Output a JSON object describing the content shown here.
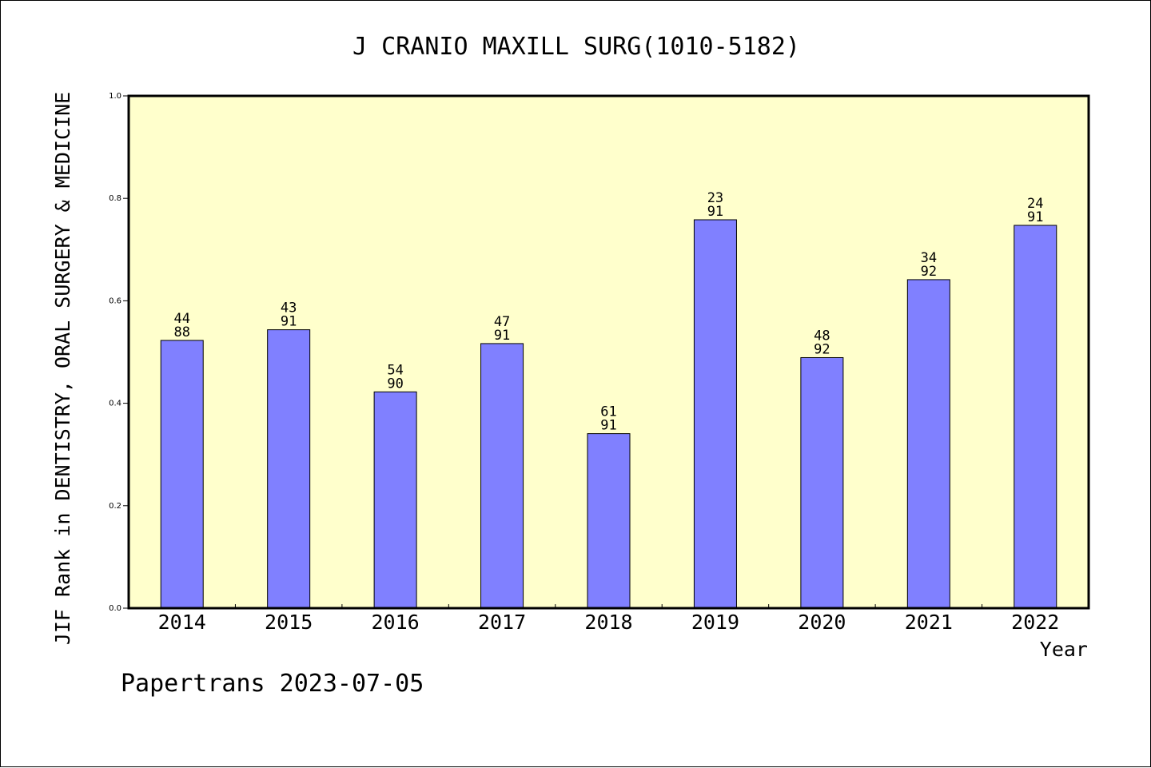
{
  "chart_data": {
    "type": "bar",
    "title": "J CRANIO MAXILL SURG(1010-5182)",
    "xlabel": "Year",
    "ylabel": "JIF Rank in DENTISTRY, ORAL SURGERY & MEDICINE",
    "ylim": [
      0.0,
      1.0
    ],
    "yticks": [
      "0.0",
      "0.2",
      "0.4",
      "0.6",
      "0.8",
      "1.0"
    ],
    "categories": [
      "2014",
      "2015",
      "2016",
      "2017",
      "2018",
      "2019",
      "2020",
      "2021",
      "2022"
    ],
    "values": [
      0.5227,
      0.5435,
      0.4222,
      0.5165,
      0.3407,
      0.7582,
      0.4891,
      0.6413,
      0.7473
    ],
    "rank_labels": [
      [
        "44",
        "88"
      ],
      [
        "43",
        "91"
      ],
      [
        "54",
        "90"
      ],
      [
        "47",
        "91"
      ],
      [
        "61",
        "91"
      ],
      [
        "23",
        "91"
      ],
      [
        "48",
        "92"
      ],
      [
        "34",
        "92"
      ],
      [
        "24",
        "91"
      ]
    ],
    "grid": false,
    "colors": {
      "plot_background": "#ffffcc",
      "bar": "#8080ff",
      "bar_edge": "#000000"
    }
  },
  "footer": "Papertrans 2023-07-05"
}
